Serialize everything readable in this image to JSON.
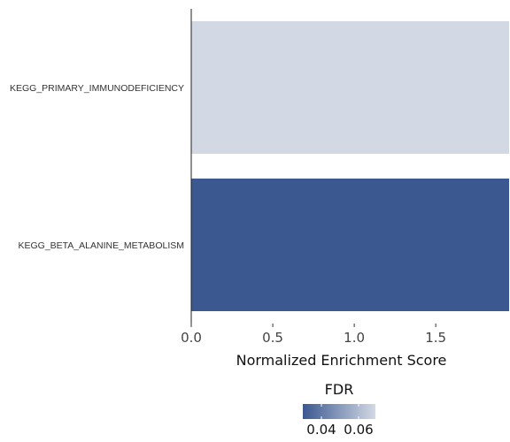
{
  "chart_data": {
    "type": "bar",
    "orientation": "horizontal",
    "categories": [
      "KEGG_PRIMARY_IMMUNODEFICIENCY",
      "KEGG_BETA_ALANINE_METABOLISM"
    ],
    "values": [
      1.95,
      1.95
    ],
    "fdr": [
      0.065,
      0.035
    ],
    "bar_colors": [
      "#d2d9e5",
      "#3b5890"
    ],
    "xlabel": "Normalized Enrichment Score",
    "xlim": [
      0.0,
      1.95
    ],
    "xticks": [
      "0.0",
      "0.5",
      "1.0",
      "1.5"
    ],
    "grid": false,
    "legend": {
      "title": "FDR",
      "placement": "bottom-center",
      "ticks": [
        "0.04",
        "0.06"
      ],
      "color_low": "#3b5890",
      "color_high": "#d2d9e5"
    }
  }
}
